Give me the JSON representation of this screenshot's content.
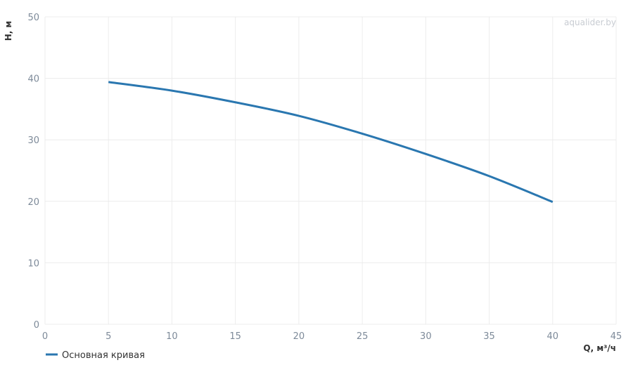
{
  "chart_data": {
    "type": "line",
    "watermark": "aqualider.by",
    "x_label": "Q, м³/ч",
    "y_label": "H, м",
    "x": [
      5,
      10,
      15,
      20,
      25,
      30,
      35,
      40
    ],
    "series": [
      {
        "name": "Основная кривая",
        "color": "#2a77b0",
        "values": [
          39.4,
          38.0,
          36.1,
          33.9,
          31.0,
          27.7,
          24.1,
          19.9
        ]
      }
    ],
    "xlim": [
      0,
      45
    ],
    "xticks": [
      0,
      5,
      10,
      15,
      20,
      25,
      30,
      35,
      40,
      45
    ],
    "ylim": [
      0,
      50
    ],
    "yticks": [
      0,
      10,
      20,
      30,
      40,
      50
    ],
    "grid": true
  }
}
